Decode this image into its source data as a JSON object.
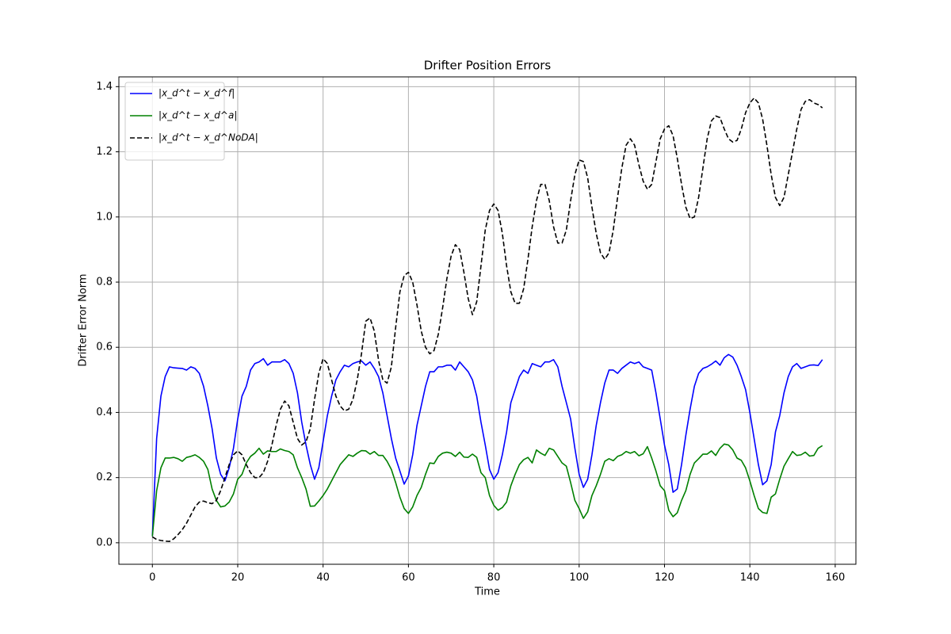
{
  "chart_data": {
    "type": "line",
    "title": "Drifter Position Errors",
    "xlabel": "Time",
    "ylabel": "Drifter Error Norm",
    "xlim": [
      -7.85,
      164.85
    ],
    "ylim": [
      -0.066,
      1.43
    ],
    "xticks": [
      0,
      20,
      40,
      60,
      80,
      100,
      120,
      140,
      160
    ],
    "yticks": [
      {
        "value": 0,
        "label": "0.0"
      },
      {
        "value": 0.2,
        "label": "0.2"
      },
      {
        "value": 0.4,
        "label": "0.4"
      },
      {
        "value": 0.6,
        "label": "0.6"
      },
      {
        "value": 0.8,
        "label": "0.8"
      },
      {
        "value": 1,
        "label": "1.0"
      },
      {
        "value": 1.2,
        "label": "1.2"
      },
      {
        "value": 1.4,
        "label": "1.4"
      }
    ],
    "grid": true,
    "legend": "upper left",
    "x": [
      0,
      1,
      2,
      3,
      4,
      5,
      6,
      7,
      8,
      9,
      10,
      11,
      12,
      13,
      14,
      15,
      16,
      17,
      18,
      19,
      20,
      21,
      22,
      23,
      24,
      25,
      26,
      27,
      28,
      29,
      30,
      31,
      32,
      33,
      34,
      35,
      36,
      37,
      38,
      39,
      40,
      41,
      42,
      43,
      44,
      45,
      46,
      47,
      48,
      49,
      50,
      51,
      52,
      53,
      54,
      55,
      56,
      57,
      58,
      59,
      60,
      61,
      62,
      63,
      64,
      65,
      66,
      67,
      68,
      69,
      70,
      71,
      72,
      73,
      74,
      75,
      76,
      77,
      78,
      79,
      80,
      81,
      82,
      83,
      84,
      85,
      86,
      87,
      88,
      89,
      90,
      91,
      92,
      93,
      94,
      95,
      96,
      97,
      98,
      99,
      100,
      101,
      102,
      103,
      104,
      105,
      106,
      107,
      108,
      109,
      110,
      111,
      112,
      113,
      114,
      115,
      116,
      117,
      118,
      119,
      120,
      121,
      122,
      123,
      124,
      125,
      126,
      127,
      128,
      129,
      130,
      131,
      132,
      133,
      134,
      135,
      136,
      137,
      138,
      139,
      140,
      141,
      142,
      143,
      144,
      145,
      146,
      147,
      148,
      149,
      150,
      151,
      152,
      153,
      154,
      155,
      156,
      157
    ],
    "series": [
      {
        "name": "|x_d^t − x_d^f|",
        "color": "#0000ff",
        "dash": false,
        "values": [
          0.02,
          0.32,
          0.45,
          0.51,
          0.54,
          0.537,
          0.536,
          0.535,
          0.53,
          0.54,
          0.535,
          0.52,
          0.48,
          0.42,
          0.35,
          0.26,
          0.21,
          0.19,
          0.23,
          0.29,
          0.38,
          0.45,
          0.48,
          0.53,
          0.55,
          0.555,
          0.565,
          0.545,
          0.555,
          0.555,
          0.555,
          0.562,
          0.55,
          0.52,
          0.46,
          0.37,
          0.3,
          0.24,
          0.195,
          0.23,
          0.31,
          0.39,
          0.45,
          0.5,
          0.525,
          0.545,
          0.54,
          0.55,
          0.555,
          0.558,
          0.545,
          0.555,
          0.535,
          0.51,
          0.46,
          0.39,
          0.32,
          0.26,
          0.22,
          0.18,
          0.205,
          0.27,
          0.36,
          0.42,
          0.48,
          0.525,
          0.525,
          0.54,
          0.54,
          0.545,
          0.545,
          0.53,
          0.555,
          0.54,
          0.525,
          0.5,
          0.45,
          0.37,
          0.3,
          0.225,
          0.195,
          0.215,
          0.27,
          0.34,
          0.43,
          0.47,
          0.51,
          0.53,
          0.52,
          0.55,
          0.545,
          0.54,
          0.555,
          0.555,
          0.562,
          0.54,
          0.48,
          0.43,
          0.38,
          0.29,
          0.21,
          0.17,
          0.195,
          0.27,
          0.36,
          0.43,
          0.49,
          0.53,
          0.53,
          0.52,
          0.535,
          0.545,
          0.555,
          0.55,
          0.555,
          0.54,
          0.535,
          0.53,
          0.46,
          0.38,
          0.3,
          0.24,
          0.155,
          0.165,
          0.24,
          0.33,
          0.41,
          0.48,
          0.52,
          0.535,
          0.54,
          0.548,
          0.558,
          0.545,
          0.568,
          0.578,
          0.57,
          0.545,
          0.51,
          0.47,
          0.4,
          0.32,
          0.24,
          0.178,
          0.19,
          0.24,
          0.34,
          0.39,
          0.46,
          0.51,
          0.54,
          0.55,
          0.535,
          0.54,
          0.545,
          0.546,
          0.544,
          0.562
        ]
      },
      {
        "name": "|x_d^t − x_d^a|",
        "color": "#008000",
        "dash": false,
        "values": [
          0.02,
          0.16,
          0.23,
          0.26,
          0.26,
          0.262,
          0.258,
          0.25,
          0.262,
          0.265,
          0.27,
          0.262,
          0.25,
          0.225,
          0.165,
          0.13,
          0.11,
          0.113,
          0.125,
          0.15,
          0.195,
          0.21,
          0.245,
          0.265,
          0.275,
          0.29,
          0.272,
          0.282,
          0.28,
          0.28,
          0.288,
          0.283,
          0.28,
          0.27,
          0.23,
          0.2,
          0.165,
          0.112,
          0.113,
          0.128,
          0.145,
          0.165,
          0.19,
          0.215,
          0.24,
          0.255,
          0.27,
          0.265,
          0.275,
          0.283,
          0.282,
          0.272,
          0.28,
          0.268,
          0.268,
          0.25,
          0.225,
          0.185,
          0.14,
          0.105,
          0.09,
          0.11,
          0.145,
          0.17,
          0.21,
          0.245,
          0.243,
          0.265,
          0.275,
          0.278,
          0.275,
          0.265,
          0.278,
          0.263,
          0.262,
          0.272,
          0.262,
          0.215,
          0.2,
          0.145,
          0.115,
          0.1,
          0.108,
          0.125,
          0.175,
          0.21,
          0.24,
          0.255,
          0.262,
          0.245,
          0.285,
          0.275,
          0.268,
          0.29,
          0.285,
          0.265,
          0.245,
          0.235,
          0.185,
          0.13,
          0.105,
          0.075,
          0.095,
          0.145,
          0.175,
          0.21,
          0.25,
          0.258,
          0.252,
          0.265,
          0.27,
          0.28,
          0.275,
          0.28,
          0.267,
          0.273,
          0.295,
          0.26,
          0.22,
          0.175,
          0.16,
          0.1,
          0.08,
          0.092,
          0.13,
          0.16,
          0.21,
          0.245,
          0.258,
          0.272,
          0.272,
          0.282,
          0.268,
          0.29,
          0.303,
          0.3,
          0.285,
          0.26,
          0.253,
          0.23,
          0.19,
          0.145,
          0.105,
          0.093,
          0.09,
          0.14,
          0.15,
          0.195,
          0.235,
          0.258,
          0.28,
          0.268,
          0.27,
          0.278,
          0.266,
          0.268,
          0.29,
          0.298
        ]
      },
      {
        "name": "|x_d^t − x_d^NoDA|",
        "color": "#000000",
        "dash": true,
        "values": [
          0.018,
          0.01,
          0.007,
          0.005,
          0.004,
          0.012,
          0.025,
          0.04,
          0.06,
          0.085,
          0.11,
          0.125,
          0.128,
          0.123,
          0.12,
          0.13,
          0.16,
          0.2,
          0.24,
          0.27,
          0.282,
          0.27,
          0.24,
          0.215,
          0.2,
          0.2,
          0.215,
          0.25,
          0.3,
          0.36,
          0.41,
          0.435,
          0.42,
          0.37,
          0.32,
          0.3,
          0.31,
          0.35,
          0.44,
          0.52,
          0.565,
          0.55,
          0.5,
          0.45,
          0.42,
          0.405,
          0.41,
          0.44,
          0.5,
          0.58,
          0.68,
          0.69,
          0.65,
          0.56,
          0.5,
          0.49,
          0.54,
          0.66,
          0.77,
          0.82,
          0.83,
          0.8,
          0.73,
          0.65,
          0.6,
          0.58,
          0.59,
          0.64,
          0.72,
          0.81,
          0.88,
          0.915,
          0.9,
          0.83,
          0.75,
          0.7,
          0.74,
          0.85,
          0.96,
          1.02,
          1.04,
          1.02,
          0.95,
          0.85,
          0.77,
          0.735,
          0.735,
          0.78,
          0.87,
          0.97,
          1.05,
          1.1,
          1.1,
          1.05,
          0.97,
          0.92,
          0.92,
          0.96,
          1.05,
          1.13,
          1.175,
          1.17,
          1.12,
          1.03,
          0.95,
          0.89,
          0.87,
          0.89,
          0.96,
          1.06,
          1.15,
          1.22,
          1.24,
          1.22,
          1.16,
          1.11,
          1.085,
          1.1,
          1.17,
          1.24,
          1.27,
          1.28,
          1.25,
          1.18,
          1.1,
          1.03,
          0.995,
          1.0,
          1.06,
          1.15,
          1.24,
          1.295,
          1.31,
          1.305,
          1.27,
          1.24,
          1.23,
          1.235,
          1.27,
          1.32,
          1.35,
          1.365,
          1.35,
          1.3,
          1.22,
          1.13,
          1.06,
          1.035,
          1.06,
          1.13,
          1.2,
          1.27,
          1.33,
          1.355,
          1.36,
          1.35,
          1.345,
          1.335
        ]
      }
    ]
  }
}
